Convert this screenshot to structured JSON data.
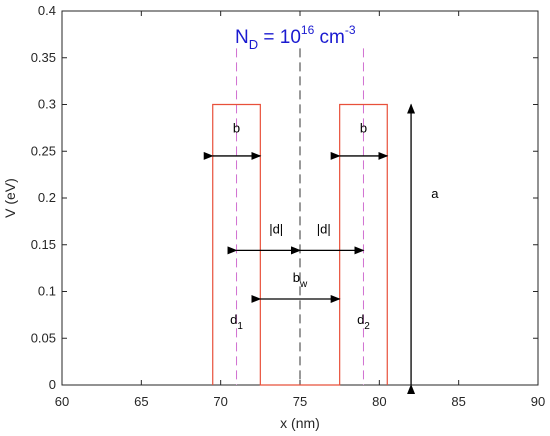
{
  "chart_data": {
    "type": "line",
    "title": {
      "base": "N",
      "base_sub": "D",
      "middle": " = 10",
      "exponent": "16",
      "unit": " cm",
      "unit_exp": "-3"
    },
    "xlabel": "x (nm)",
    "ylabel": "V (eV)",
    "xlim": [
      60,
      90
    ],
    "ylim": [
      0,
      0.4
    ],
    "xticks": [
      60,
      65,
      70,
      75,
      80,
      85,
      90
    ],
    "xtick_labels": [
      "60",
      "65",
      "70",
      "75",
      "80",
      "85",
      "90"
    ],
    "yticks": [
      0,
      0.05,
      0.1,
      0.15,
      0.2,
      0.25,
      0.3,
      0.35,
      0.4
    ],
    "ytick_labels": [
      "0",
      "0.05",
      "0.1",
      "0.15",
      "0.2",
      "0.25",
      "0.3",
      "0.35",
      "0.4"
    ],
    "grid": false,
    "series": [
      {
        "color": "#e8503a",
        "x": [
          69.5,
          69.5,
          72.5,
          72.5,
          77.5,
          77.5,
          80.5,
          80.5
        ],
        "y": [
          0,
          0.3,
          0.3,
          0,
          0,
          0.3,
          0.3,
          0
        ]
      }
    ],
    "reference_lines": [
      {
        "x": 71,
        "color": "#d070d0",
        "style": "dashed"
      },
      {
        "x": 79,
        "color": "#d070d0",
        "style": "dashed"
      },
      {
        "x": 75,
        "color": "#333333",
        "style": "dashed"
      }
    ],
    "annotations": {
      "b_left": {
        "text": "b",
        "x": 71,
        "y": 0.27,
        "arrow_from": 69.5,
        "arrow_to": 72.5,
        "arrow_y": 0.245
      },
      "b_right": {
        "text": "b",
        "x": 79,
        "y": 0.27,
        "arrow_from": 77.5,
        "arrow_to": 80.5,
        "arrow_y": 0.245
      },
      "d_left": {
        "text": "|d|",
        "x": 73.5,
        "y": 0.162,
        "arrow_from": 71,
        "arrow_to": 75,
        "arrow_y": 0.144
      },
      "d_right": {
        "text": "|d|",
        "x": 76.5,
        "y": 0.162,
        "arrow_from": 75,
        "arrow_to": 79,
        "arrow_y": 0.144
      },
      "bw": {
        "text": "b",
        "sub": "w",
        "x": 75,
        "y": 0.11,
        "arrow_from": 72.5,
        "arrow_to": 77.5,
        "arrow_y": 0.092
      },
      "d1": {
        "text": "d",
        "sub": "1",
        "x": 71,
        "y": 0.065
      },
      "d2": {
        "text": "d",
        "sub": "2",
        "x": 79,
        "y": 0.065
      },
      "a": {
        "text": "a",
        "x": 83.5,
        "y": 0.2,
        "arrow_x": 82,
        "arrow_from": 0,
        "arrow_to": 0.3
      }
    }
  }
}
